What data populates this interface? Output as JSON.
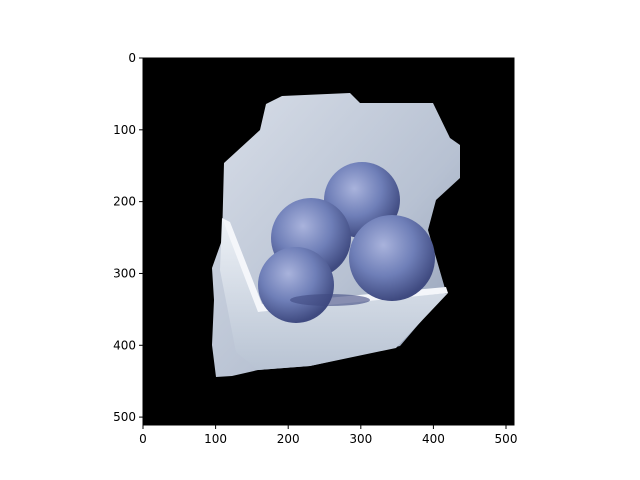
{
  "axes": {
    "x_ticks": [
      "0",
      "100",
      "200",
      "300",
      "400",
      "500"
    ],
    "y_ticks": [
      "0",
      "100",
      "200",
      "300",
      "400",
      "500"
    ],
    "xlim": [
      0,
      511
    ],
    "ylim": [
      511,
      0
    ]
  },
  "image": {
    "subject": "blue sugar-coated round treats in a white square bowl, masked on black background",
    "colors": {
      "background": "#000000",
      "backdrop": "#c9d2de",
      "bowl": "#dfe6ee",
      "treat": "#6f7fb8",
      "treat_dark": "#4a5690"
    }
  }
}
